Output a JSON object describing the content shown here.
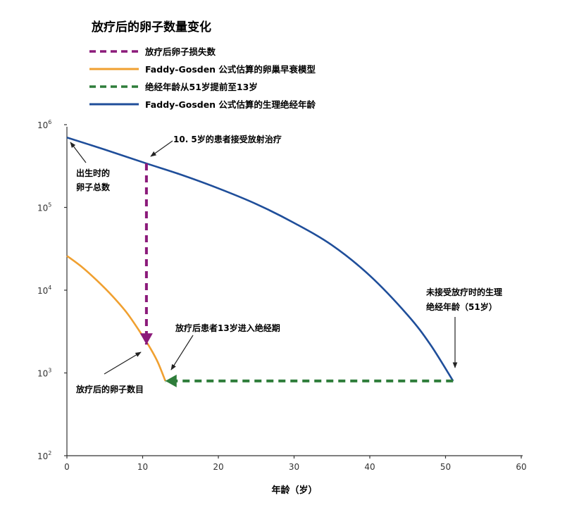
{
  "chart_data": {
    "type": "line",
    "title": "放疗后的卵子数量变化",
    "xlabel": "年龄（岁）",
    "ylabel": "",
    "xlim": [
      0,
      60
    ],
    "ylim": [
      100,
      1000000
    ],
    "yscale": "log",
    "x_ticks": [
      0,
      10,
      20,
      30,
      40,
      50,
      60
    ],
    "y_tick_labels": [
      {
        "base": "10",
        "exp": "2"
      },
      {
        "base": "10",
        "exp": "3"
      },
      {
        "base": "10",
        "exp": "4"
      },
      {
        "base": "10",
        "exp": "5"
      },
      {
        "base": "10",
        "exp": "6"
      }
    ],
    "legend_position": "top-left",
    "legend": [
      {
        "label": "放疗后卵子损失数",
        "color": "#8b1a7a",
        "style": "dashed"
      },
      {
        "label": "Faddy-Gosden 公式估算的卵巢早衰模型",
        "color": "#f0a030",
        "style": "solid"
      },
      {
        "label": "绝经年龄从51岁提前至13岁",
        "color": "#2e7d3a",
        "style": "dashed"
      },
      {
        "label": "Faddy-Gosden 公式估算的生理绝经年龄",
        "color": "#1f4e9a",
        "style": "solid"
      }
    ],
    "series": [
      {
        "color": "#1f4e9a",
        "points": [
          [
            0,
            700000
          ],
          [
            5,
            500000
          ],
          [
            10.5,
            340000
          ],
          [
            15,
            250000
          ],
          [
            20,
            170000
          ],
          [
            25,
            110000
          ],
          [
            30,
            65000
          ],
          [
            35,
            35000
          ],
          [
            40,
            15000
          ],
          [
            45,
            5000
          ],
          [
            48,
            2200
          ],
          [
            51,
            800
          ]
        ]
      },
      {
        "color": "#f0a030",
        "points": [
          [
            0,
            26000
          ],
          [
            2,
            19000
          ],
          [
            4,
            13000
          ],
          [
            6,
            8500
          ],
          [
            8,
            5200
          ],
          [
            10,
            2800
          ],
          [
            11,
            2000
          ],
          [
            12,
            1350
          ],
          [
            13,
            800
          ]
        ]
      },
      {
        "color": "#8b1a7a",
        "style": "dashed",
        "points": [
          [
            10.5,
            340000
          ],
          [
            10.5,
            2200
          ]
        ]
      },
      {
        "color": "#2e7d3a",
        "style": "dashed",
        "points": [
          [
            51,
            800
          ],
          [
            13,
            800
          ]
        ]
      }
    ],
    "annotations": [
      {
        "text": "10. 5岁的患者接受放射治疗",
        "x": 10.5,
        "y": 340000
      },
      {
        "text_lines": [
          "出生时的",
          "卵子总数"
        ],
        "x": 0,
        "y": 700000
      },
      {
        "text_lines": [
          "未接受放疗时的生理",
          "绝经年龄（51岁）"
        ],
        "x": 51,
        "y": 800
      },
      {
        "text": "放疗后患者13岁进入绝经期",
        "x": 13,
        "y": 800
      },
      {
        "text": "放疗后的卵子数目",
        "x": 10,
        "y": 2000
      }
    ]
  }
}
